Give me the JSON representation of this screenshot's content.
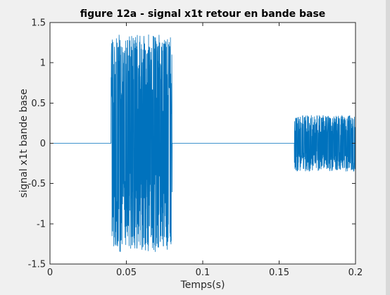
{
  "chart_data": {
    "type": "line",
    "title": "figure 12a - signal x1t retour en bande base",
    "xlabel": "Temps(s)",
    "ylabel": "signal x1t bande base",
    "xlim": [
      0,
      0.2
    ],
    "ylim": [
      -1.5,
      1.5
    ],
    "xticks": [
      "0",
      "0.05",
      "0.1",
      "0.15",
      "0.2"
    ],
    "xtick_values": [
      0,
      0.05,
      0.1,
      0.15,
      0.2
    ],
    "yticks": [
      "-1.5",
      "-1",
      "-0.5",
      "0",
      "0.5",
      "1",
      "1.5"
    ],
    "ytick_values": [
      -1.5,
      -1,
      -0.5,
      0,
      0.5,
      1,
      1.5
    ],
    "grid": false,
    "line_color": "#0072BD",
    "series": [
      {
        "segments": [
          {
            "x_start": 0,
            "x_end": 0.04,
            "amplitude": 0
          },
          {
            "x_start": 0.04,
            "x_end": 0.08,
            "amplitude": 1.35
          },
          {
            "x_start": 0.08,
            "x_end": 0.16,
            "amplitude": 0
          },
          {
            "x_start": 0.16,
            "x_end": 0.2,
            "amplitude": 0.35
          }
        ]
      }
    ]
  }
}
